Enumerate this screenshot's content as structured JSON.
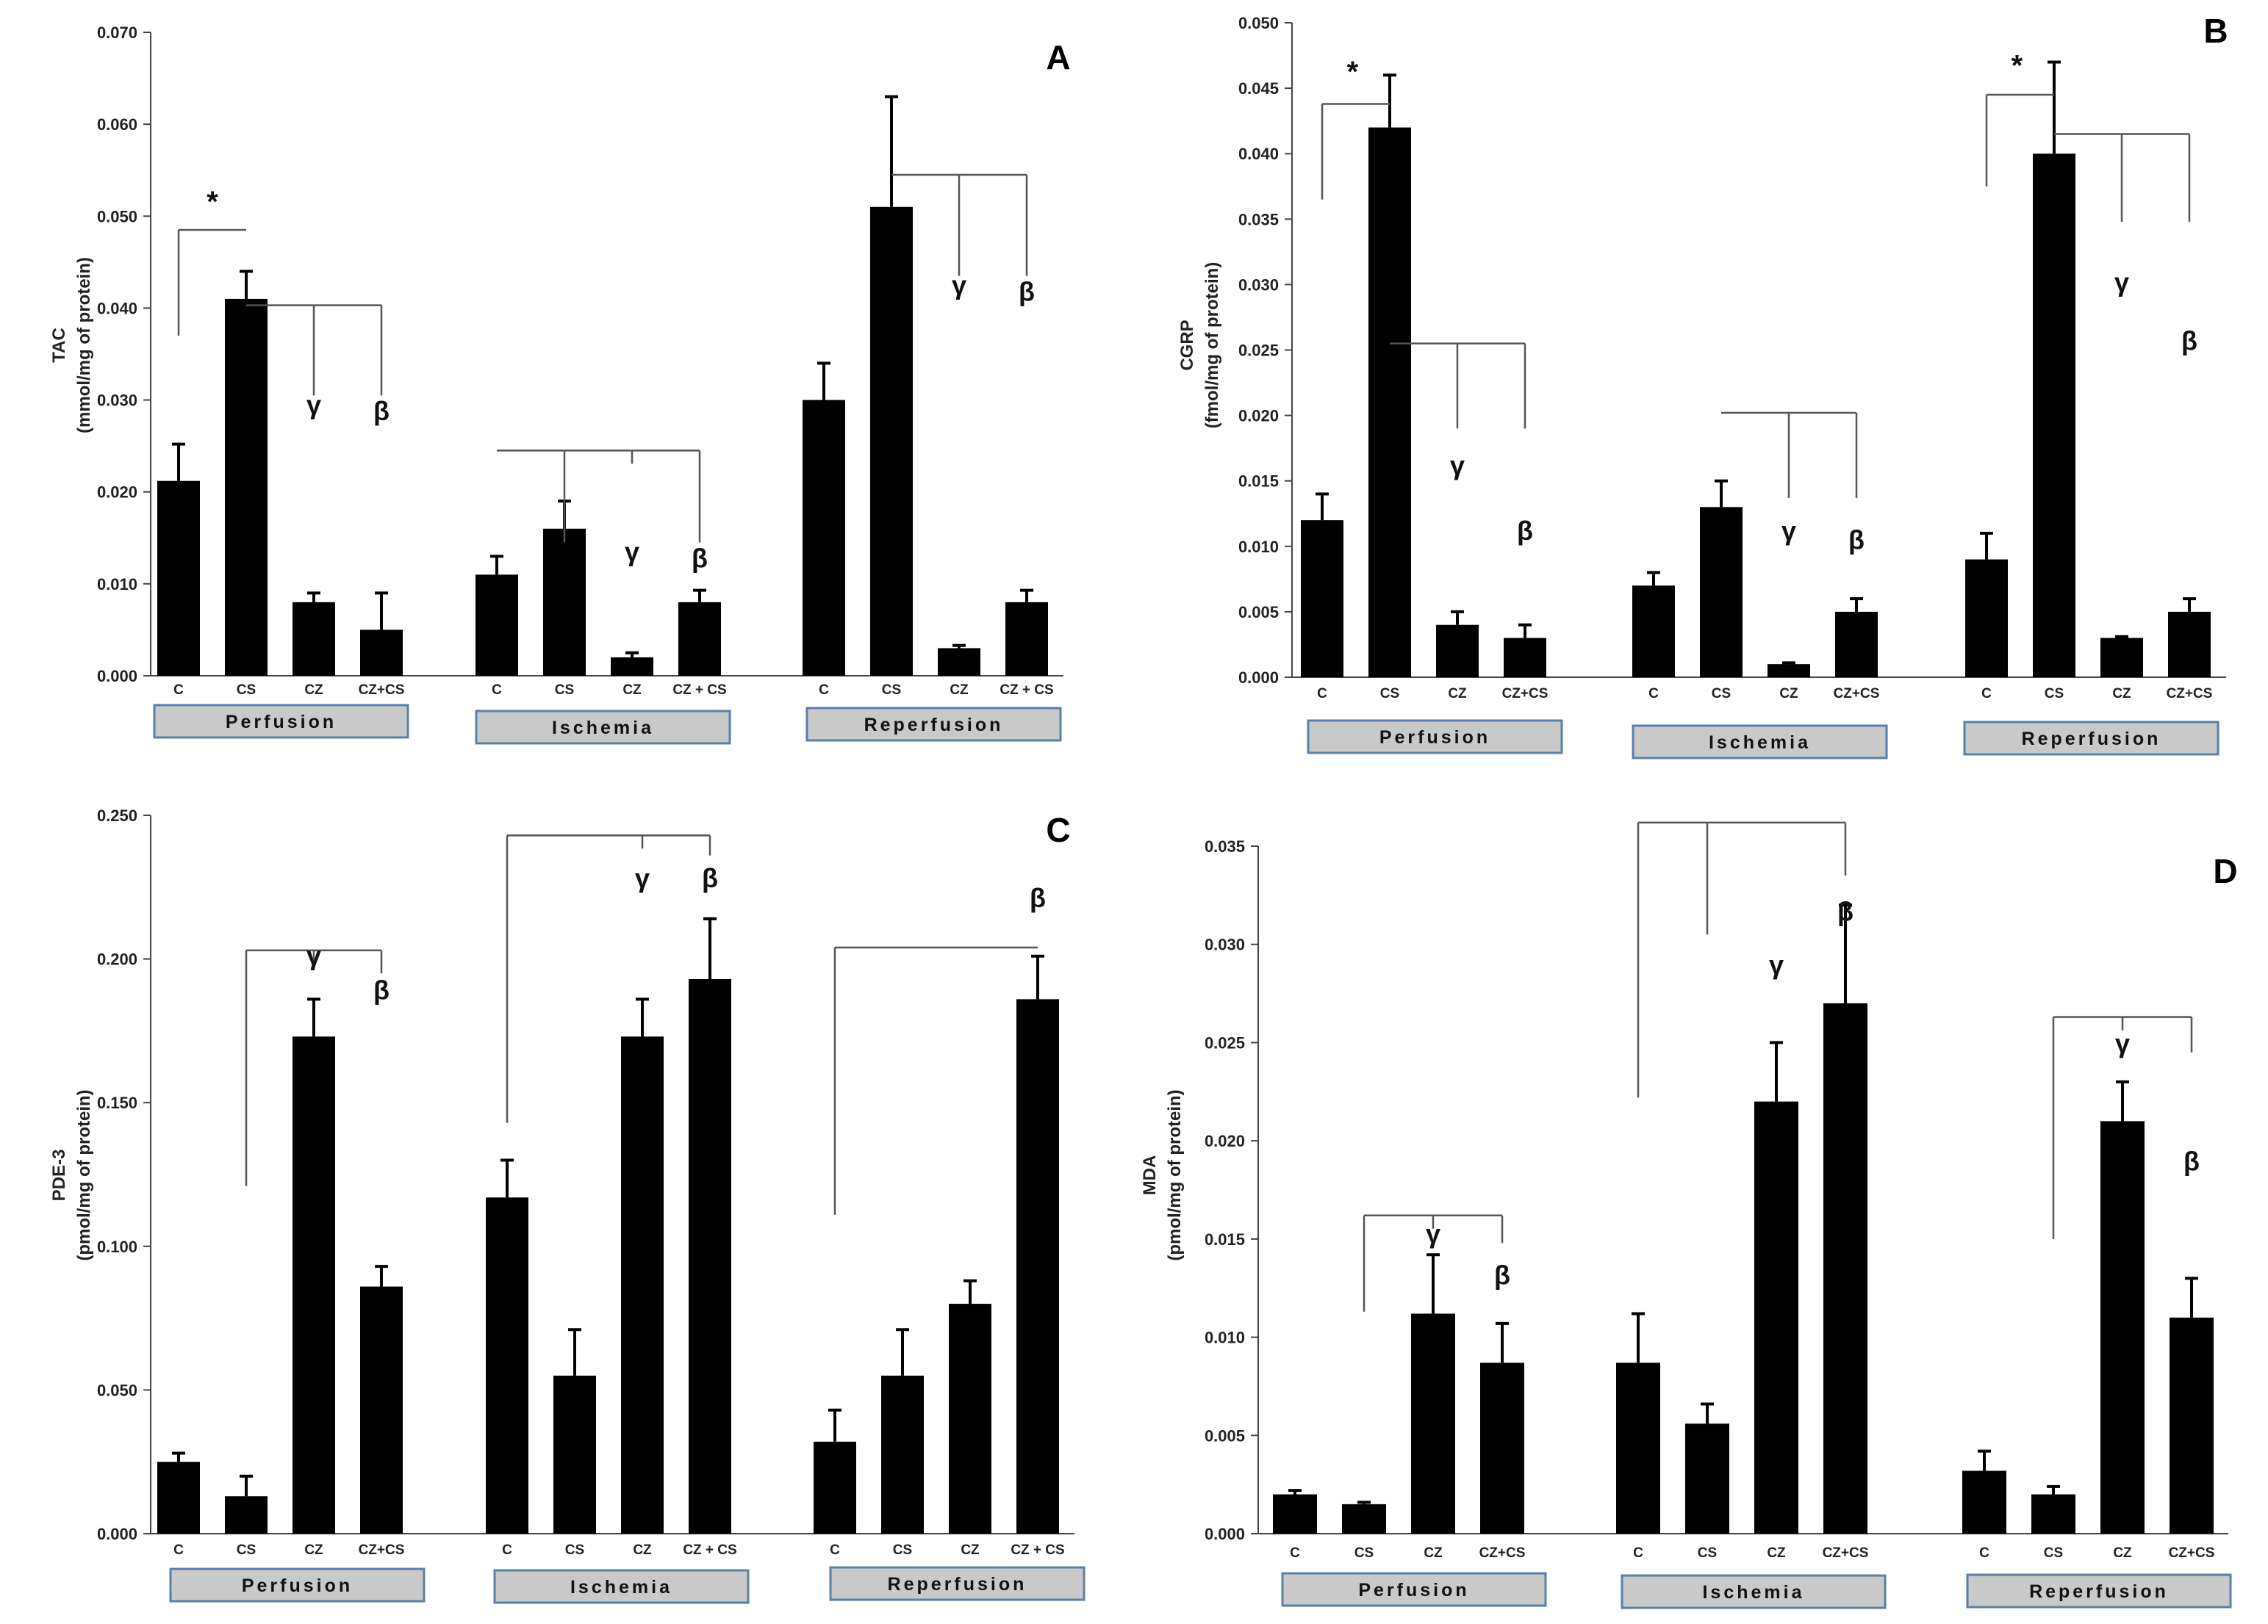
{
  "chart_data": [
    {
      "type": "bar",
      "panel": "A",
      "ylabel_lines": [
        "TAC",
        "(mmol/mg of protein)"
      ],
      "ylim": [
        0,
        0.07
      ],
      "yticks": [
        "0.000",
        "0.010",
        "0.020",
        "0.030",
        "0.040",
        "0.050",
        "0.060",
        "0.070"
      ],
      "groups": [
        {
          "name": "Perfusion",
          "categories": [
            "C",
            "CS",
            "CZ",
            "CZ+CS"
          ],
          "values": [
            0.0212,
            0.041,
            0.008,
            0.005
          ],
          "errors": [
            0.004,
            0.003,
            0.001,
            0.004
          ]
        },
        {
          "name": "Ischemia",
          "categories": [
            "C",
            "CS",
            "CZ",
            "CZ + CS"
          ],
          "values": [
            0.011,
            0.016,
            0.002,
            0.008
          ],
          "errors": [
            0.002,
            0.003,
            0.0005,
            0.0013
          ]
        },
        {
          "name": "Reperfusion",
          "categories": [
            "C",
            "CS",
            "CZ",
            "CZ + CS"
          ],
          "values": [
            0.03,
            0.051,
            0.003,
            0.008
          ],
          "errors": [
            0.004,
            0.012,
            0.0003,
            0.0013
          ]
        }
      ],
      "annotations": [
        {
          "type": "bracket",
          "g": 0,
          "i0": 0,
          "i1": 1,
          "top": 0.0485,
          "legs": [
            0.037,
            0.0485
          ],
          "labels": [
            {
              "text": "*",
              "i": 0.5,
              "y": 0.0505
            }
          ]
        },
        {
          "type": "bracket",
          "g": 0,
          "i0": 1,
          "i1": 3,
          "top": 0.0403,
          "legs": [
            null,
            0.0305,
            0.0305
          ],
          "labels": [
            {
              "text": "γ",
              "i": 2,
              "y": 0.0285
            },
            {
              "text": "β",
              "i": 3,
              "y": 0.0278
            }
          ]
        },
        {
          "type": "bracket",
          "g": 1,
          "i0": 0,
          "i1": 3,
          "top": 0.0245,
          "legs": [
            0.0245,
            0.0145,
            0.0145
          ],
          "stub": 2,
          "labels": [
            {
              "text": "γ",
              "i": 2,
              "y": 0.0125
            },
            {
              "text": "β",
              "i": 3,
              "y": 0.0118
            }
          ]
        },
        {
          "type": "bracket",
          "g": 2,
          "i0": 1,
          "i1": 3,
          "top": 0.0545,
          "legs": [
            null,
            0.0435,
            0.0435
          ],
          "labels": [
            {
              "text": "γ",
              "i": 2,
              "y": 0.0415
            },
            {
              "text": "β",
              "i": 3,
              "y": 0.0408
            }
          ]
        }
      ]
    },
    {
      "type": "bar",
      "panel": "B",
      "ylabel_lines": [
        "CGRP",
        "(fmol/mg of protein)"
      ],
      "ylim": [
        0,
        0.05
      ],
      "yticks": [
        "0.000",
        "0.005",
        "0.010",
        "0.015",
        "0.020",
        "0.025",
        "0.030",
        "0.035",
        "0.040",
        "0.045",
        "0.050"
      ],
      "groups": [
        {
          "name": "Perfusion",
          "categories": [
            "C",
            "CS",
            "CZ",
            "CZ+CS"
          ],
          "values": [
            0.012,
            0.042,
            0.004,
            0.003
          ],
          "errors": [
            0.002,
            0.004,
            0.001,
            0.001
          ]
        },
        {
          "name": "Ischemia",
          "categories": [
            "C",
            "CS",
            "CZ",
            "CZ+CS"
          ],
          "values": [
            0.007,
            0.013,
            0.001,
            0.005
          ],
          "errors": [
            0.001,
            0.002,
            0.0001,
            0.001
          ]
        },
        {
          "name": "Reperfusion",
          "categories": [
            "C",
            "CS",
            "CZ",
            "CZ+CS"
          ],
          "values": [
            0.009,
            0.04,
            0.003,
            0.005
          ],
          "errors": [
            0.002,
            0.007,
            0.0001,
            0.001
          ]
        }
      ],
      "annotations": [
        {
          "type": "bracket",
          "g": 0,
          "i0": 0,
          "i1": 1,
          "top": 0.0438,
          "legs": [
            0.0365,
            null
          ],
          "labels": [
            {
              "text": "*",
              "i": 0.45,
              "y": 0.0455
            }
          ]
        },
        {
          "type": "bracket",
          "g": 0,
          "i0": 1,
          "i1": 3,
          "top": 0.0255,
          "legs": [
            null,
            0.019,
            0.019
          ],
          "labels": [
            {
              "text": "γ",
              "i": 2,
              "y": 0.0155
            },
            {
              "text": "β",
              "i": 3,
              "y": 0.0105
            }
          ]
        },
        {
          "type": "bracket",
          "g": 1,
          "i0": 1,
          "i1": 3,
          "top": 0.0202,
          "legs": [
            null,
            0.0137,
            0.0137
          ],
          "labels": [
            {
              "text": "γ",
              "i": 2,
              "y": 0.0105
            },
            {
              "text": "β",
              "i": 3,
              "y": 0.0098
            }
          ]
        },
        {
          "type": "bracket",
          "g": 2,
          "i0": 0,
          "i1": 1,
          "top": 0.0445,
          "legs": [
            0.0375,
            null
          ],
          "labels": [
            {
              "text": "*",
              "i": 0.45,
              "y": 0.046
            }
          ]
        },
        {
          "type": "bracket",
          "g": 2,
          "i0": 1,
          "i1": 3,
          "top": 0.0415,
          "legs": [
            null,
            0.0348,
            0.0348
          ],
          "labels": [
            {
              "text": "γ",
              "i": 2,
              "y": 0.0295
            },
            {
              "text": "β",
              "i": 3,
              "y": 0.025
            }
          ]
        }
      ]
    },
    {
      "type": "bar",
      "panel": "C",
      "ylabel_lines": [
        "PDE-3",
        "(pmol/mg of protein)"
      ],
      "ylim": [
        0,
        0.25
      ],
      "yticks": [
        "0.000",
        "0.050",
        "0.100",
        "0.150",
        "0.200",
        "0.250"
      ],
      "groups": [
        {
          "name": "Perfusion",
          "categories": [
            "C",
            "CS",
            "CZ",
            "CZ+CS"
          ],
          "values": [
            0.025,
            0.013,
            0.173,
            0.086
          ],
          "errors": [
            0.003,
            0.007,
            0.013,
            0.007
          ]
        },
        {
          "name": "Ischemia",
          "categories": [
            "C",
            "CS",
            "CZ",
            "CZ + CS"
          ],
          "values": [
            0.117,
            0.055,
            0.173,
            0.193
          ],
          "errors": [
            0.013,
            0.016,
            0.013,
            0.021
          ]
        },
        {
          "name": "Reperfusion",
          "categories": [
            "C",
            "CS",
            "CZ",
            "CZ + CS"
          ],
          "values": [
            0.032,
            0.055,
            0.08,
            0.186
          ],
          "errors": [
            0.011,
            0.016,
            0.008,
            0.015
          ]
        }
      ],
      "annotations": [
        {
          "type": "bracket",
          "g": 0,
          "i0": 1,
          "i1": 3,
          "top": 0.203,
          "legs": [
            0.121,
            null,
            0.195
          ],
          "stub": 2,
          "labels": [
            {
              "text": "γ",
              "i": 2,
              "y": 0.198
            },
            {
              "text": "β",
              "i": 3,
              "y": 0.186
            }
          ]
        },
        {
          "type": "bracket",
          "g": 1,
          "i0": 0,
          "i1": 3,
          "top": 0.243,
          "legs": [
            0.143,
            null,
            0.236
          ],
          "stub": 2,
          "labels": [
            {
              "text": "γ",
              "i": 2,
              "y": 0.225
            },
            {
              "text": "β",
              "i": 3,
              "y": 0.225
            }
          ]
        },
        {
          "type": "bracket",
          "g": 2,
          "i0": 0,
          "i1": 3,
          "top": 0.204,
          "legs": [
            0.111,
            null
          ],
          "labels": [
            {
              "text": "β",
              "i": 3,
              "y": 0.218
            }
          ]
        }
      ]
    },
    {
      "type": "bar",
      "panel": "D",
      "ylabel_lines": [
        "MDA",
        "(pmol/mg of protein)"
      ],
      "ylim": [
        0,
        0.035
      ],
      "yticks": [
        "0.000",
        "0.005",
        "0.010",
        "0.015",
        "0.020",
        "0.025",
        "0.030",
        "0.035"
      ],
      "groups": [
        {
          "name": "Perfusion",
          "categories": [
            "C",
            "CS",
            "CZ",
            "CZ+CS"
          ],
          "values": [
            0.002,
            0.0015,
            0.0112,
            0.0087
          ],
          "errors": [
            0.0002,
            0.0001,
            0.003,
            0.002
          ]
        },
        {
          "name": "Ischemia",
          "categories": [
            "C",
            "CS",
            "CZ",
            "CZ+CS"
          ],
          "values": [
            0.0087,
            0.0056,
            0.022,
            0.027
          ],
          "errors": [
            0.0025,
            0.001,
            0.003,
            0.005
          ]
        },
        {
          "name": "Reperfusion",
          "categories": [
            "C",
            "CS",
            "CZ",
            "CZ+CS"
          ],
          "values": [
            0.0032,
            0.002,
            0.021,
            0.011
          ],
          "errors": [
            0.001,
            0.0004,
            0.002,
            0.002
          ]
        }
      ],
      "annotations": [
        {
          "type": "bracket",
          "g": 0,
          "i0": 1,
          "i1": 3,
          "top": 0.0162,
          "legs": [
            0.0113,
            null,
            0.0148
          ],
          "stub": 2,
          "labels": [
            {
              "text": "γ",
              "i": 2,
              "y": 0.0148
            },
            {
              "text": "β",
              "i": 3,
              "y": 0.0127
            }
          ]
        },
        {
          "type": "bracket",
          "g": 1,
          "i0": 0,
          "i1": 3,
          "top": 0.0362,
          "legs": [
            0.0222,
            0.0305,
            0.0335
          ],
          "labels": [
            {
              "text": "γ",
              "i": 2,
              "y": 0.0285
            },
            {
              "text": "β",
              "i": 3,
              "y": 0.0312
            }
          ]
        },
        {
          "type": "bracket",
          "g": 2,
          "i0": 1,
          "i1": 3,
          "top": 0.0263,
          "legs": [
            0.015,
            null,
            0.0245
          ],
          "stub": 2,
          "labels": [
            {
              "text": "γ",
              "i": 2,
              "y": 0.0245
            },
            {
              "text": "β",
              "i": 3,
              "y": 0.0185
            }
          ]
        }
      ]
    }
  ]
}
